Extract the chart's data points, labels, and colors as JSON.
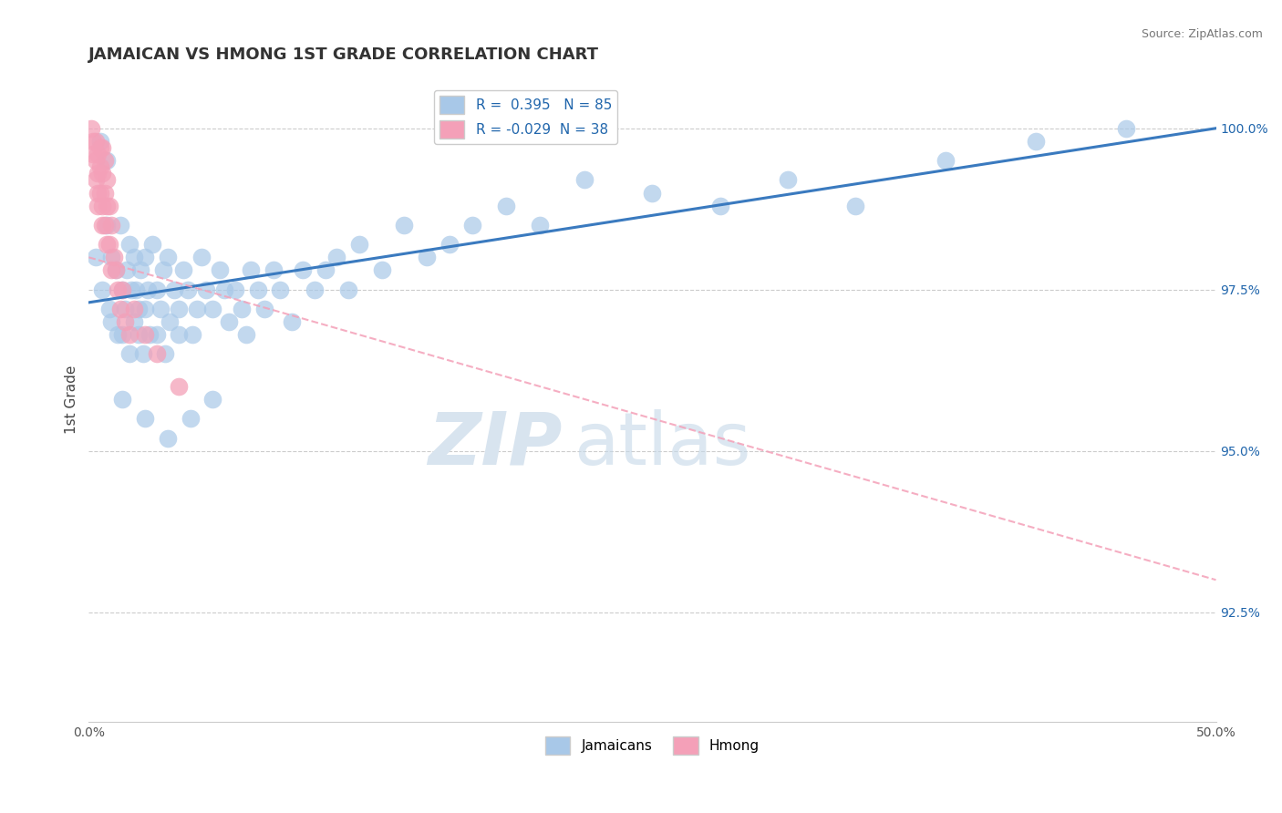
{
  "title": "JAMAICAN VS HMONG 1ST GRADE CORRELATION CHART",
  "source": "Source: ZipAtlas.com",
  "ylabel": "1st Grade",
  "xlim": [
    0.0,
    0.5
  ],
  "ylim": [
    0.908,
    1.008
  ],
  "yticks": [
    0.925,
    0.95,
    0.975,
    1.0
  ],
  "yticklabels": [
    "92.5%",
    "95.0%",
    "97.5%",
    "100.0%"
  ],
  "blue_R": 0.395,
  "blue_N": 85,
  "pink_R": -0.029,
  "pink_N": 38,
  "blue_color": "#a8c8e8",
  "pink_color": "#f4a0b8",
  "blue_line_color": "#3a7abf",
  "pink_line_color": "#f4a0b8",
  "legend_labels": [
    "Jamaicans",
    "Hmong"
  ],
  "blue_line_x0": 0.0,
  "blue_line_y0": 0.973,
  "blue_line_x1": 0.5,
  "blue_line_y1": 1.0,
  "pink_line_x0": 0.0,
  "pink_line_y0": 0.98,
  "pink_line_x1": 0.5,
  "pink_line_y1": 0.93,
  "blue_scatter_x": [
    0.003,
    0.005,
    0.006,
    0.008,
    0.008,
    0.009,
    0.01,
    0.01,
    0.012,
    0.013,
    0.014,
    0.015,
    0.015,
    0.016,
    0.017,
    0.018,
    0.018,
    0.019,
    0.02,
    0.02,
    0.021,
    0.022,
    0.022,
    0.023,
    0.024,
    0.025,
    0.025,
    0.026,
    0.027,
    0.028,
    0.03,
    0.03,
    0.032,
    0.033,
    0.034,
    0.035,
    0.036,
    0.038,
    0.04,
    0.04,
    0.042,
    0.044,
    0.046,
    0.048,
    0.05,
    0.052,
    0.055,
    0.058,
    0.06,
    0.062,
    0.065,
    0.068,
    0.07,
    0.072,
    0.075,
    0.078,
    0.082,
    0.085,
    0.09,
    0.095,
    0.1,
    0.105,
    0.11,
    0.115,
    0.12,
    0.13,
    0.14,
    0.15,
    0.16,
    0.17,
    0.185,
    0.2,
    0.22,
    0.25,
    0.28,
    0.31,
    0.34,
    0.38,
    0.42,
    0.46,
    0.015,
    0.025,
    0.035,
    0.045,
    0.055
  ],
  "blue_scatter_y": [
    0.98,
    0.998,
    0.975,
    0.985,
    0.995,
    0.972,
    0.98,
    0.97,
    0.978,
    0.968,
    0.985,
    0.975,
    0.968,
    0.972,
    0.978,
    0.982,
    0.965,
    0.975,
    0.98,
    0.97,
    0.975,
    0.972,
    0.968,
    0.978,
    0.965,
    0.98,
    0.972,
    0.975,
    0.968,
    0.982,
    0.975,
    0.968,
    0.972,
    0.978,
    0.965,
    0.98,
    0.97,
    0.975,
    0.972,
    0.968,
    0.978,
    0.975,
    0.968,
    0.972,
    0.98,
    0.975,
    0.972,
    0.978,
    0.975,
    0.97,
    0.975,
    0.972,
    0.968,
    0.978,
    0.975,
    0.972,
    0.978,
    0.975,
    0.97,
    0.978,
    0.975,
    0.978,
    0.98,
    0.975,
    0.982,
    0.978,
    0.985,
    0.98,
    0.982,
    0.985,
    0.988,
    0.985,
    0.992,
    0.99,
    0.988,
    0.992,
    0.988,
    0.995,
    0.998,
    1.0,
    0.958,
    0.955,
    0.952,
    0.955,
    0.958
  ],
  "pink_scatter_x": [
    0.001,
    0.002,
    0.002,
    0.003,
    0.003,
    0.003,
    0.004,
    0.004,
    0.004,
    0.004,
    0.005,
    0.005,
    0.005,
    0.006,
    0.006,
    0.006,
    0.006,
    0.007,
    0.007,
    0.007,
    0.008,
    0.008,
    0.008,
    0.009,
    0.009,
    0.01,
    0.01,
    0.011,
    0.012,
    0.013,
    0.014,
    0.015,
    0.016,
    0.018,
    0.02,
    0.025,
    0.03,
    0.04
  ],
  "pink_scatter_y": [
    1.0,
    0.998,
    0.996,
    0.998,
    0.995,
    0.992,
    0.996,
    0.993,
    0.99,
    0.988,
    0.997,
    0.994,
    0.99,
    0.997,
    0.993,
    0.988,
    0.985,
    0.995,
    0.99,
    0.985,
    0.992,
    0.988,
    0.982,
    0.988,
    0.982,
    0.985,
    0.978,
    0.98,
    0.978,
    0.975,
    0.972,
    0.975,
    0.97,
    0.968,
    0.972,
    0.968,
    0.965,
    0.96
  ]
}
